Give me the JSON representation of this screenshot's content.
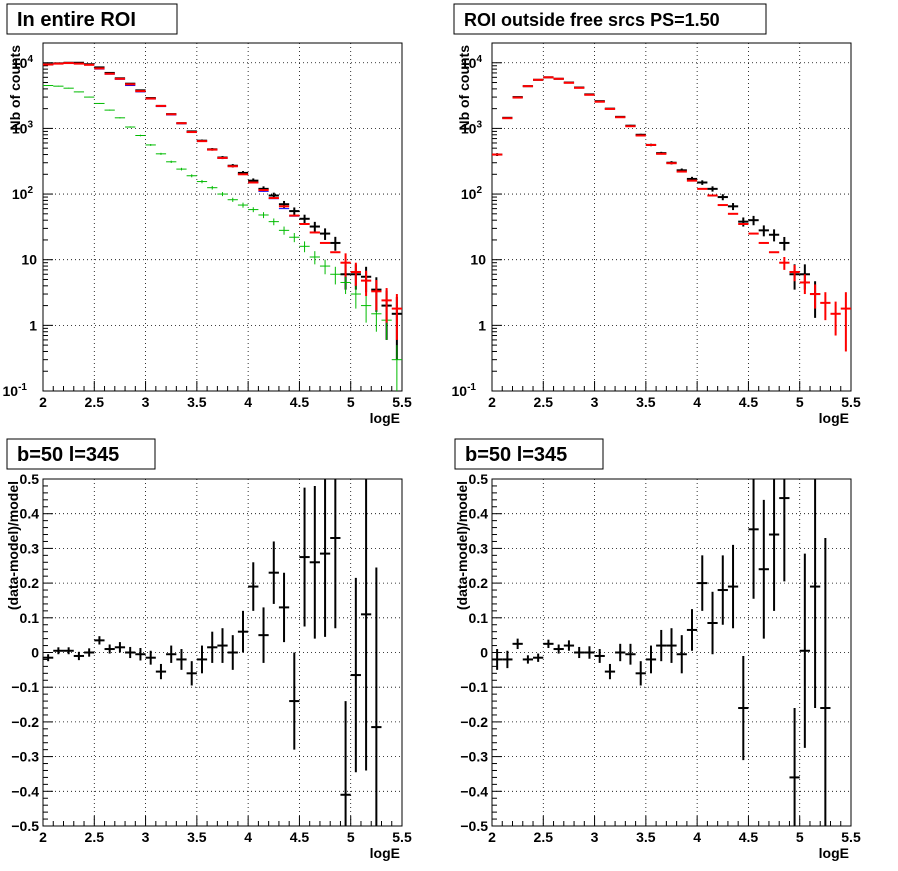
{
  "panels": [
    {
      "title": "In entire ROI",
      "chart_data": {
        "type": "scatter",
        "xlabel": "logE",
        "ylabel": "Nb of counts",
        "xlim": [
          2,
          5.5
        ],
        "ylim": [
          0.1,
          20000
        ],
        "log_y": true,
        "grid": true,
        "x_ticks": [
          "2",
          "2.5",
          "3",
          "3.5",
          "4",
          "4.5",
          "5",
          "5.5"
        ],
        "y_ticks": [
          "10^-1",
          "1",
          "10",
          "10^2",
          "10^3",
          "10^4"
        ],
        "series": [
          {
            "color": "#000000",
            "x": [
              2.05,
              2.15,
              2.25,
              2.35,
              2.45,
              2.55,
              2.65,
              2.75,
              2.85,
              2.95,
              3.05,
              3.15,
              3.25,
              3.35,
              3.45,
              3.55,
              3.65,
              3.75,
              3.85,
              3.95,
              4.05,
              4.15,
              4.25,
              4.35,
              4.45,
              4.55,
              4.65,
              4.75,
              4.85,
              4.95,
              5.05,
              5.15,
              5.25,
              5.35,
              5.45
            ],
            "y": [
              9500,
              9800,
              10000,
              10000,
              9500,
              8500,
              7000,
              5800,
              4800,
              3800,
              2900,
              2200,
              1650,
              1200,
              900,
              650,
              480,
              360,
              270,
              210,
              160,
              120,
              95,
              70,
              55,
              42,
              32,
              25,
              18,
              6,
              6,
              5.5,
              3.5,
              2,
              1.5
            ],
            "yerr": [
              100,
              100,
              100,
              100,
              100,
              90,
              85,
              75,
              70,
              60,
              55,
              48,
              40,
              35,
              30,
              26,
              22,
              19,
              16,
              14,
              13,
              11,
              10,
              8.5,
              7.5,
              6.5,
              5.7,
              5,
              4.3,
              2.5,
              2.5,
              2.3,
              1.9,
              1.4,
              1.2
            ]
          },
          {
            "color": "#0000ff",
            "x": [
              2.05,
              2.15,
              2.25,
              2.35,
              2.45,
              2.55,
              2.65,
              2.75,
              2.85,
              2.95,
              3.05,
              3.15,
              3.25,
              3.35,
              3.45,
              3.55,
              3.65,
              3.75,
              3.85,
              3.95,
              4.05,
              4.15,
              4.25,
              4.35,
              4.45
            ],
            "y": [
              9300,
              9700,
              9800,
              9700,
              9300,
              8000,
              6700,
              5600,
              4500,
              3600,
              2800,
              2150,
              1600,
              1180,
              870,
              640,
              470,
              350,
              265,
              200,
              150,
              110,
              85,
              60,
              46
            ],
            "yerr": [
              0,
              0,
              0,
              0,
              0,
              0,
              0,
              0,
              0,
              0,
              0,
              0,
              0,
              0,
              0,
              0,
              0,
              0,
              0,
              0,
              0,
              0,
              0,
              0,
              0
            ]
          },
          {
            "color": "#00bb00",
            "x": [
              2.05,
              2.15,
              2.25,
              2.35,
              2.45,
              2.55,
              2.65,
              2.75,
              2.85,
              2.95,
              3.05,
              3.15,
              3.25,
              3.35,
              3.45,
              3.55,
              3.65,
              3.75,
              3.85,
              3.95,
              4.05,
              4.15,
              4.25,
              4.35,
              4.45,
              4.55,
              4.65,
              4.75,
              4.85,
              4.95,
              5.05,
              5.15,
              5.25,
              5.35,
              5.45
            ],
            "y": [
              4500,
              4400,
              4100,
              3600,
              3000,
              2400,
              1900,
              1450,
              1050,
              780,
              560,
              410,
              310,
              240,
              190,
              155,
              125,
              100,
              82,
              68,
              58,
              48,
              38,
              28,
              22,
              16,
              11,
              8,
              6,
              4.5,
              3,
              2,
              1.5,
              1.2,
              0.3
            ],
            "yerr": [
              60,
              60,
              55,
              50,
              45,
              40,
              35,
              30,
              25,
              22,
              18,
              15,
              13,
              11,
              10,
              9,
              8,
              7,
              6,
              6,
              5,
              5,
              4.5,
              4,
              3.5,
              3,
              2.5,
              2,
              1.8,
              1.5,
              1.2,
              0.9,
              0.7,
              0.6,
              0.2
            ]
          },
          {
            "color": "#ff0000",
            "x": [
              2.05,
              2.15,
              2.25,
              2.35,
              2.45,
              2.55,
              2.65,
              2.75,
              2.85,
              2.95,
              3.05,
              3.15,
              3.25,
              3.35,
              3.45,
              3.55,
              3.65,
              3.75,
              3.85,
              3.95,
              4.05,
              4.15,
              4.25,
              4.35,
              4.45,
              4.55,
              4.65,
              4.75,
              4.85,
              4.95,
              5.05,
              5.15,
              5.25,
              5.35,
              5.45
            ],
            "y": [
              9400,
              9700,
              9900,
              9700,
              9300,
              8200,
              6800,
              5700,
              4700,
              3700,
              2850,
              2200,
              1640,
              1200,
              880,
              640,
              475,
              355,
              265,
              200,
              150,
              115,
              87,
              65,
              47,
              35,
              26,
              18,
              13,
              9,
              6.5,
              4.8,
              3.3,
              2.4,
              1.8
            ],
            "yerr": [
              0,
              0,
              0,
              0,
              0,
              0,
              0,
              0,
              0,
              0,
              0,
              0,
              0,
              0,
              0,
              0,
              0,
              0,
              0,
              0,
              0,
              0,
              0,
              0,
              0,
              0,
              0,
              0,
              0,
              3.5,
              2.5,
              2,
              1.6,
              1.3,
              1.2
            ]
          }
        ]
      }
    },
    {
      "title": "ROI outside free srcs PS=1.50",
      "chart_data": {
        "type": "scatter",
        "xlabel": "logE",
        "ylabel": "Nb of counts",
        "xlim": [
          2,
          5.5
        ],
        "ylim": [
          0.1,
          20000
        ],
        "log_y": true,
        "grid": true,
        "x_ticks": [
          "2",
          "2.5",
          "3",
          "3.5",
          "4",
          "4.5",
          "5",
          "5.5"
        ],
        "y_ticks": [
          "10^-1",
          "1",
          "10",
          "10^2",
          "10^3",
          "10^4"
        ],
        "series": [
          {
            "color": "#000000",
            "x": [
              2.05,
              2.15,
              2.25,
              2.35,
              2.45,
              2.55,
              2.65,
              2.75,
              2.85,
              2.95,
              3.05,
              3.15,
              3.25,
              3.35,
              3.45,
              3.55,
              3.65,
              3.75,
              3.85,
              3.95,
              4.05,
              4.15,
              4.25,
              4.35,
              4.45,
              4.55,
              4.65,
              4.75,
              4.85,
              4.95,
              5.05,
              5.15
            ],
            "y": [
              400,
              1450,
              3000,
              4400,
              5500,
              6000,
              5700,
              5000,
              4200,
              3300,
              2600,
              2000,
              1500,
              1100,
              800,
              560,
              420,
              300,
              230,
              170,
              150,
              120,
              90,
              65,
              38,
              40,
              28,
              24,
              18,
              6,
              6,
              3
            ],
            "yerr": [
              20,
              40,
              55,
              65,
              75,
              80,
              75,
              70,
              65,
              57,
              50,
              45,
              38,
              33,
              28,
              24,
              20,
              17,
              15,
              13,
              12,
              11,
              9.5,
              8,
              6,
              6.5,
              5.3,
              5,
              4.2,
              2.5,
              2.5,
              1.7
            ]
          },
          {
            "color": "#ff0000",
            "x": [
              2.05,
              2.15,
              2.25,
              2.35,
              2.45,
              2.55,
              2.65,
              2.75,
              2.85,
              2.95,
              3.05,
              3.15,
              3.25,
              3.35,
              3.45,
              3.55,
              3.65,
              3.75,
              3.85,
              3.95,
              4.05,
              4.15,
              4.25,
              4.35,
              4.45,
              4.55,
              4.65,
              4.75,
              4.85,
              4.95,
              5.05,
              5.15,
              5.25,
              5.35,
              5.45
            ],
            "y": [
              400,
              1430,
              2950,
              4400,
              5500,
              6000,
              5700,
              4950,
              4150,
              3250,
              2550,
              1980,
              1480,
              1080,
              780,
              560,
              410,
              295,
              220,
              160,
              120,
              95,
              68,
              50,
              35,
              25,
              18,
              13,
              9,
              6.5,
              4.5,
              3,
              2.2,
              1.5,
              1.8
            ],
            "yerr": [
              0,
              0,
              0,
              0,
              0,
              0,
              0,
              0,
              0,
              0,
              0,
              0,
              0,
              0,
              0,
              0,
              0,
              0,
              0,
              0,
              0,
              0,
              0,
              0,
              0,
              0,
              0,
              0,
              2,
              1.8,
              1.5,
              1.2,
              1,
              0.8,
              1.4
            ]
          }
        ]
      }
    },
    {
      "title": "b=50 l=345",
      "chart_data": {
        "type": "scatter",
        "xlabel": "logE",
        "ylabel": "(data-model)/model",
        "xlim": [
          2,
          5.5
        ],
        "ylim": [
          -0.5,
          0.5
        ],
        "grid": true,
        "x_ticks": [
          "2",
          "2.5",
          "3",
          "3.5",
          "4",
          "4.5",
          "5",
          "5.5"
        ],
        "y_ticks": [
          "−0.5",
          "−0.4",
          "−0.3",
          "−0.2",
          "−0.1",
          "0",
          "0.1",
          "0.2",
          "0.3",
          "0.4",
          "0.5"
        ],
        "series": [
          {
            "color": "#000000",
            "x": [
              2.05,
              2.15,
              2.25,
              2.35,
              2.45,
              2.55,
              2.65,
              2.75,
              2.85,
              2.95,
              3.05,
              3.15,
              3.25,
              3.35,
              3.45,
              3.55,
              3.65,
              3.75,
              3.85,
              3.95,
              4.05,
              4.15,
              4.25,
              4.35,
              4.45,
              4.55,
              4.65,
              4.75,
              4.85,
              4.95,
              5.05,
              5.15,
              5.25
            ],
            "y": [
              -0.015,
              0.005,
              0.005,
              -0.01,
              0,
              0.035,
              0.01,
              0.015,
              0,
              -0.005,
              -0.015,
              -0.055,
              -0.005,
              -0.02,
              -0.06,
              -0.02,
              0.015,
              0.02,
              0,
              0.06,
              0.19,
              0.05,
              0.23,
              0.13,
              -0.14,
              0.275,
              0.26,
              0.285,
              0.33,
              -0.41,
              -0.065,
              0.11,
              -0.215
            ],
            "yerr": [
              0.01,
              0.01,
              0.01,
              0.012,
              0.012,
              0.012,
              0.013,
              0.015,
              0.016,
              0.018,
              0.02,
              0.022,
              0.025,
              0.03,
              0.035,
              0.04,
              0.045,
              0.05,
              0.05,
              0.06,
              0.07,
              0.08,
              0.09,
              0.1,
              0.14,
              0.2,
              0.22,
              0.24,
              0.26,
              0.27,
              0.28,
              0.45,
              0.46
            ]
          }
        ]
      }
    },
    {
      "title": "b=50 l=345",
      "chart_data": {
        "type": "scatter",
        "xlabel": "logE",
        "ylabel": "(data-model)/model",
        "xlim": [
          2,
          5.5
        ],
        "ylim": [
          -0.5,
          0.5
        ],
        "grid": true,
        "x_ticks": [
          "2",
          "2.5",
          "3",
          "3.5",
          "4",
          "4.5",
          "5",
          "5.5"
        ],
        "y_ticks": [
          "−0.5",
          "−0.4",
          "−0.3",
          "−0.2",
          "−0.1",
          "0",
          "0.1",
          "0.2",
          "0.3",
          "0.4",
          "0.5"
        ],
        "series": [
          {
            "color": "#000000",
            "x": [
              2.05,
              2.15,
              2.25,
              2.35,
              2.45,
              2.55,
              2.65,
              2.75,
              2.85,
              2.95,
              3.05,
              3.15,
              3.25,
              3.35,
              3.45,
              3.55,
              3.65,
              3.75,
              3.85,
              3.95,
              4.05,
              4.15,
              4.25,
              4.35,
              4.45,
              4.55,
              4.65,
              4.75,
              4.85,
              4.95,
              5.05,
              5.15,
              5.25
            ],
            "y": [
              -0.02,
              -0.02,
              0.025,
              -0.02,
              -0.015,
              0.025,
              0.01,
              0.02,
              0,
              0,
              -0.01,
              -0.055,
              0,
              -0.005,
              -0.06,
              -0.02,
              0.02,
              0.02,
              -0.005,
              0.065,
              0.2,
              0.085,
              0.18,
              0.19,
              -0.16,
              0.355,
              0.24,
              0.34,
              0.445,
              -0.36,
              0.005,
              0.19,
              -0.16
            ],
            "yerr": [
              0.03,
              0.025,
              0.015,
              0.012,
              0.012,
              0.012,
              0.013,
              0.015,
              0.016,
              0.018,
              0.02,
              0.022,
              0.025,
              0.03,
              0.035,
              0.04,
              0.045,
              0.05,
              0.055,
              0.06,
              0.08,
              0.09,
              0.1,
              0.12,
              0.15,
              0.2,
              0.2,
              0.22,
              0.24,
              0.2,
              0.28,
              0.35,
              0.49
            ]
          }
        ]
      }
    }
  ]
}
